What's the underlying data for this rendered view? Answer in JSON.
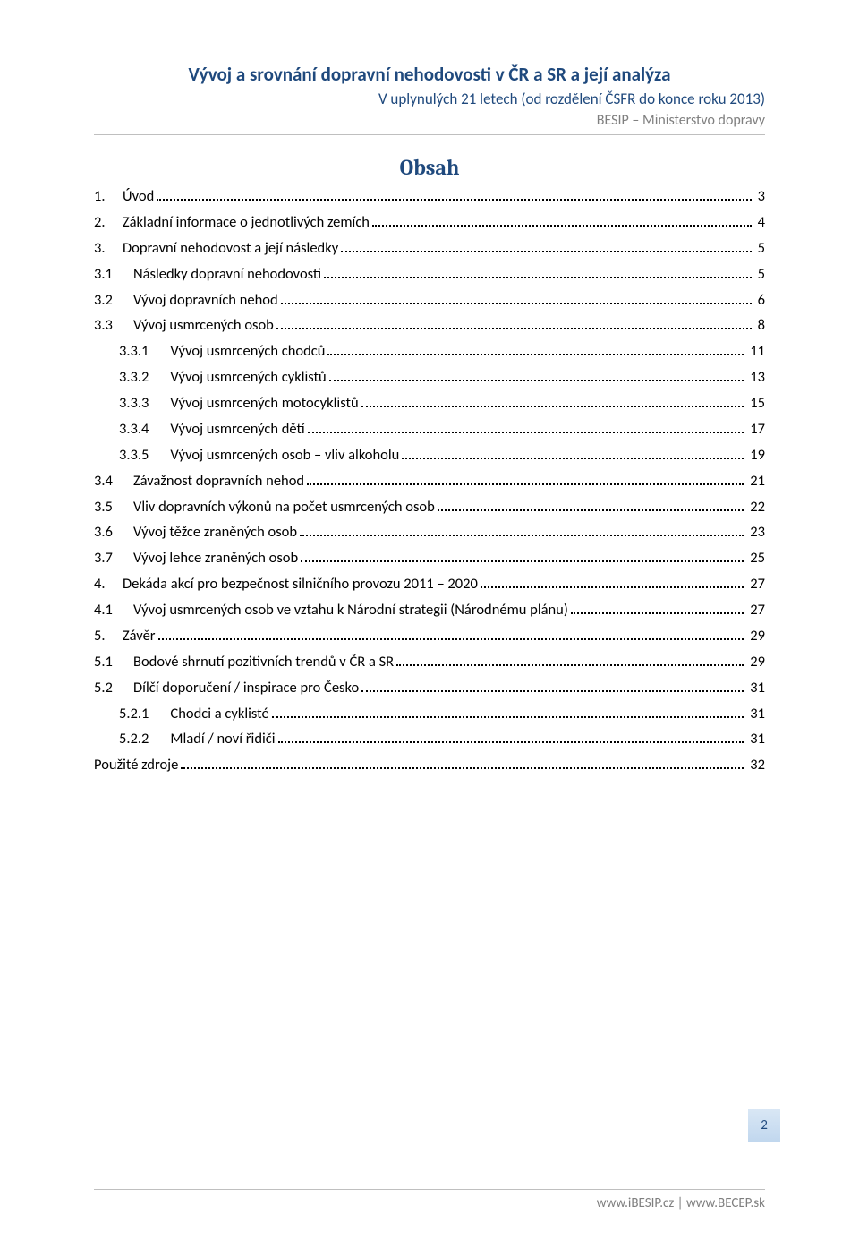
{
  "header": {
    "title": "Vývoj a srovnání dopravní nehodovosti v ČR a SR a její analýza",
    "subtitle": "V uplynulých 21 letech (od rozdělení ČSFR do konce roku 2013)",
    "org": "BESIP – Ministerstvo dopravy",
    "title_color": "#1f497d",
    "subtitle_color": "#1f497d",
    "org_color": "#7f7f7f"
  },
  "toc": {
    "title": "Obsah",
    "title_color": "#1f497d",
    "entries": [
      {
        "num": "1.",
        "text": "Úvod",
        "page": "3",
        "indent": 0
      },
      {
        "num": "2.",
        "text": "Základní informace o jednotlivých zemích",
        "page": "4",
        "indent": 0
      },
      {
        "num": "3.",
        "text": "Dopravní nehodovost a její následky",
        "page": "5",
        "indent": 0
      },
      {
        "num": "3.1",
        "text": "Následky dopravní nehodovosti",
        "page": "5",
        "indent": 1
      },
      {
        "num": "3.2",
        "text": "Vývoj dopravních nehod",
        "page": "6",
        "indent": 1
      },
      {
        "num": "3.3",
        "text": "Vývoj usmrcených osob",
        "page": "8",
        "indent": 1
      },
      {
        "num": "3.3.1",
        "text": "Vývoj usmrcených chodců",
        "page": "11",
        "indent": 2
      },
      {
        "num": "3.3.2",
        "text": "Vývoj usmrcených cyklistů",
        "page": "13",
        "indent": 2
      },
      {
        "num": "3.3.3",
        "text": "Vývoj usmrcených motocyklistů",
        "page": "15",
        "indent": 2
      },
      {
        "num": "3.3.4",
        "text": "Vývoj usmrcených dětí",
        "page": "17",
        "indent": 2
      },
      {
        "num": "3.3.5",
        "text": "Vývoj usmrcených osob – vliv alkoholu",
        "page": "19",
        "indent": 2
      },
      {
        "num": "3.4",
        "text": "Závažnost dopravních nehod",
        "page": "21",
        "indent": 1
      },
      {
        "num": "3.5",
        "text": "Vliv dopravních výkonů na počet usmrcených osob",
        "page": "22",
        "indent": 1
      },
      {
        "num": "3.6",
        "text": "Vývoj těžce zraněných osob",
        "page": "23",
        "indent": 1
      },
      {
        "num": "3.7",
        "text": "Vývoj lehce zraněných osob",
        "page": "25",
        "indent": 1
      },
      {
        "num": "4.",
        "text": "Dekáda akcí pro bezpečnost silničního provozu 2011 – 2020",
        "page": "27",
        "indent": 0
      },
      {
        "num": "4.1",
        "text": "Vývoj usmrcených osob ve vztahu k Národní strategii (Národnému plánu)",
        "page": "27",
        "indent": 1
      },
      {
        "num": "5.",
        "text": "Závěr",
        "page": "29",
        "indent": 0
      },
      {
        "num": "5.1",
        "text": "Bodové shrnutí pozitivních trendů v ČR a SR",
        "page": "29",
        "indent": 1
      },
      {
        "num": "5.2",
        "text": "Dílčí doporučení / inspirace pro Česko",
        "page": "31",
        "indent": 1
      },
      {
        "num": "5.2.1",
        "text": "Chodci a cyklisté",
        "page": "31",
        "indent": 2
      },
      {
        "num": "5.2.2",
        "text": "Mladí / noví řidiči",
        "page": "31",
        "indent": 2
      },
      {
        "num": "",
        "text": "Použité zdroje",
        "page": "32",
        "indent": 1
      }
    ]
  },
  "footer": {
    "text": "www.iBESIP.cz | www.BECEP.sk",
    "color": "#7f7f7f"
  },
  "page_number": "2",
  "page_number_box": {
    "gradient_top": "#d9e7f5",
    "gradient_bottom": "#c1d7ee",
    "text_color": "#1f497d"
  }
}
